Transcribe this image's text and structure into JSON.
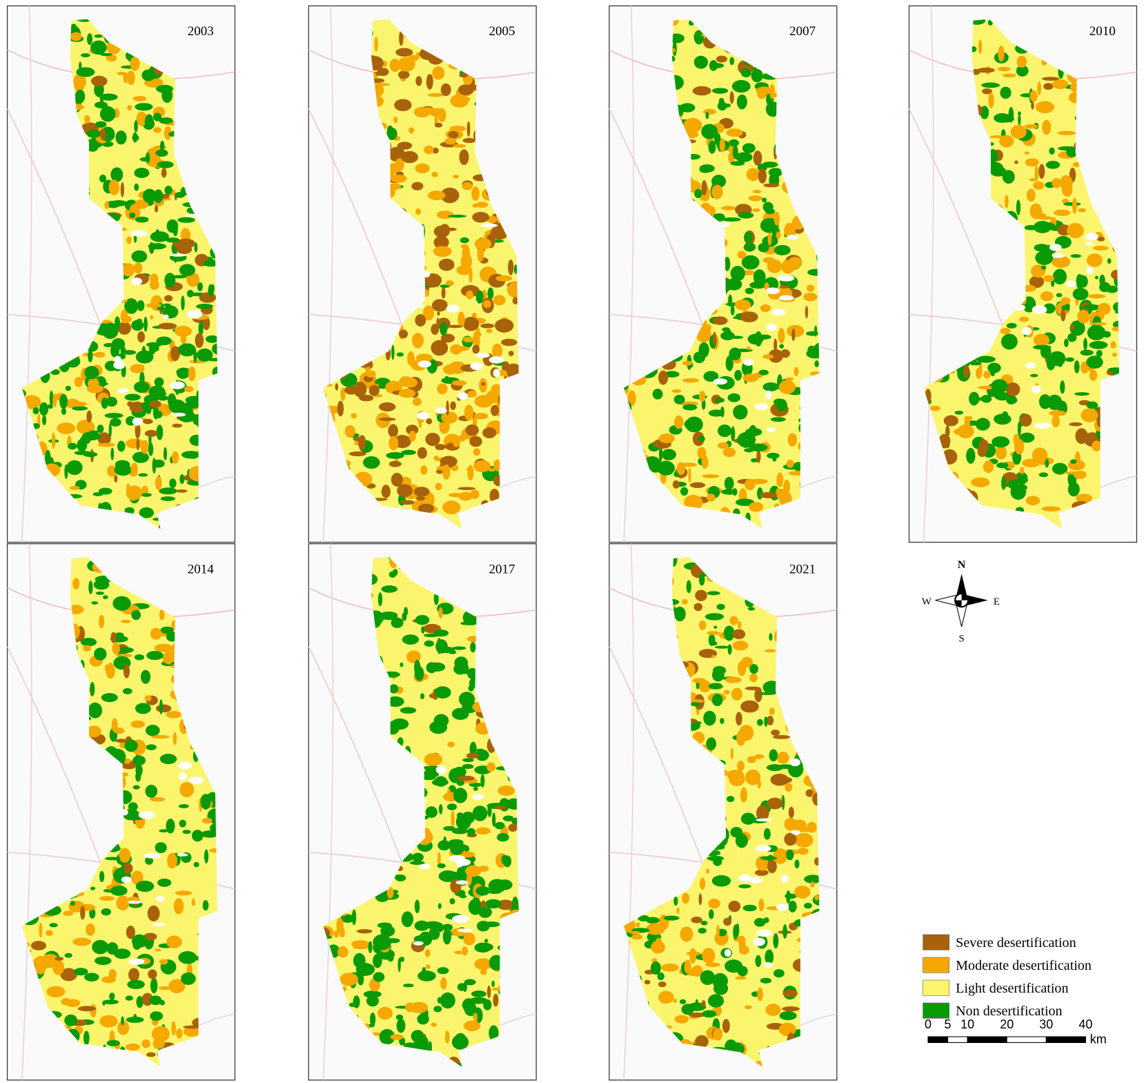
{
  "panels": [
    {
      "year": "2003"
    },
    {
      "year": "2005"
    },
    {
      "year": "2007"
    },
    {
      "year": "2010"
    },
    {
      "year": "2014"
    },
    {
      "year": "2017"
    },
    {
      "year": "2021"
    }
  ],
  "compass": {
    "north": "N",
    "south": "S",
    "west": "W",
    "east": "E"
  },
  "legend": [
    {
      "label": "Severe desertification",
      "color": "#a8620a"
    },
    {
      "label": "Moderate desertification",
      "color": "#f5a800"
    },
    {
      "label": "Light desertification",
      "color": "#fbf56e"
    },
    {
      "label": "Non desertification",
      "color": "#0a9a08"
    }
  ],
  "scale_bar": {
    "ticks": [
      0,
      5,
      10,
      20,
      30,
      40
    ],
    "unit": "km"
  }
}
